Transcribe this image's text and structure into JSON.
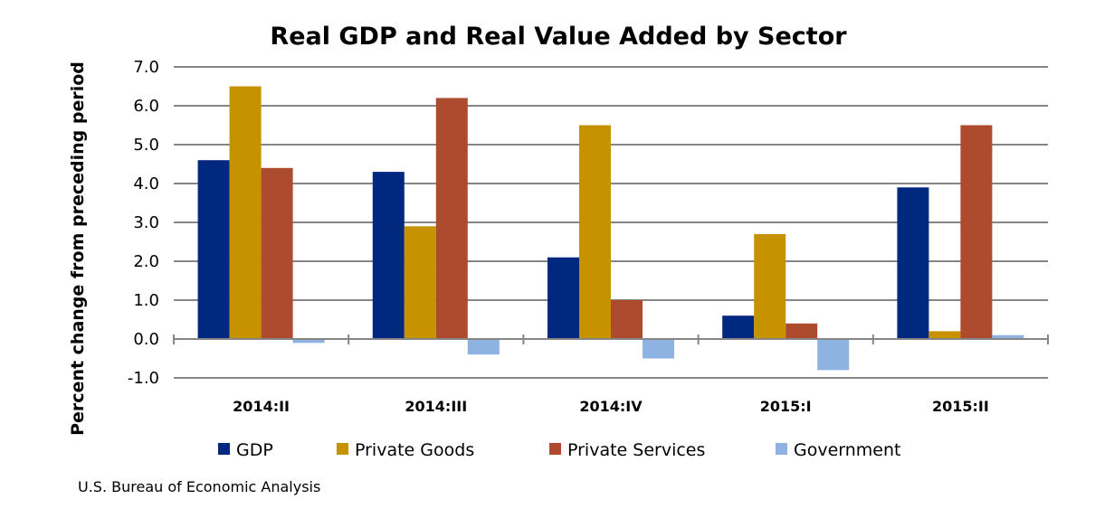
{
  "chart_data": {
    "type": "bar",
    "title": "Real GDP and Real Value Added by Sector",
    "xlabel": "",
    "ylabel": "Percent change from preceding period",
    "ylim": [
      -1.0,
      7.0
    ],
    "yticks": [
      "7.0",
      "6.0",
      "5.0",
      "4.0",
      "3.0",
      "2.0",
      "1.0",
      "0.0",
      "-1.0"
    ],
    "grid": true,
    "legend_position": "bottom",
    "categories": [
      "2014:II",
      "2014:III",
      "2014:IV",
      "2015:I",
      "2015:II"
    ],
    "series": [
      {
        "name": "GDP",
        "color": "#00287f",
        "values": [
          4.6,
          4.3,
          2.1,
          0.6,
          3.9
        ]
      },
      {
        "name": "Private Goods",
        "color": "#c79200",
        "values": [
          6.5,
          2.9,
          5.5,
          2.7,
          0.2
        ]
      },
      {
        "name": "Private Services",
        "color": "#ae4a2e",
        "values": [
          4.4,
          6.2,
          1.0,
          0.4,
          5.5
        ]
      },
      {
        "name": "Government",
        "color": "#8eb3e2",
        "values": [
          -0.1,
          -0.4,
          -0.5,
          -0.8,
          0.1
        ]
      }
    ],
    "source": "U.S. Bureau of Economic Analysis"
  }
}
